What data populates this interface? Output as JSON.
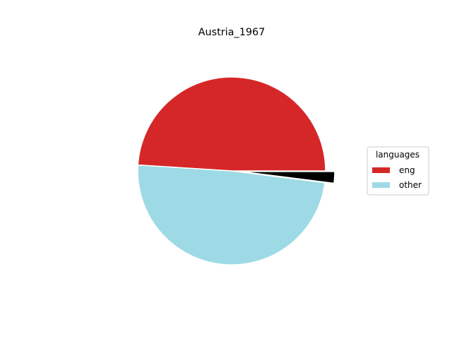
{
  "chart_data": {
    "type": "pie",
    "title": "Austria_1967",
    "legend": {
      "title": "languages",
      "placement": "right"
    },
    "slices": [
      {
        "label": "eng",
        "value": 49.0,
        "color": "#d62728",
        "explode": false
      },
      {
        "label": "other",
        "value": 49.0,
        "color": "#9edae5",
        "explode": false
      },
      {
        "label": "",
        "value": 2.0,
        "color": "#000000",
        "explode": true
      }
    ]
  }
}
